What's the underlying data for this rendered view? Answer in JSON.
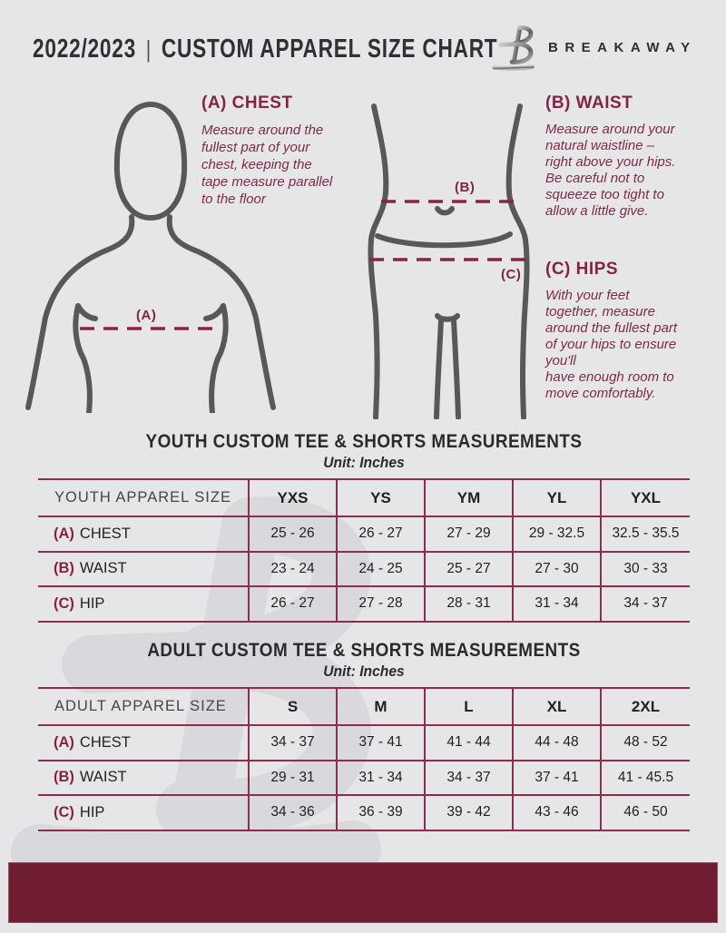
{
  "header": {
    "year": "2022/2023",
    "divider": "|",
    "title": "CUSTOM APPAREL SIZE CHART",
    "brand": "BREAKAWAY"
  },
  "instructions": [
    {
      "heading": "(A) CHEST",
      "body": "Measure around the\nfullest part of your\nchest, keeping the\ntape measure parallel\nto the floor"
    },
    {
      "heading": "(B) WAIST",
      "body": "Measure around your\nnatural waistline –\nright above your hips.\nBe careful not to\nsqueeze too tight to\nallow a little give."
    },
    {
      "heading": "(C) HIPS",
      "body": "With your feet\ntogether, measure\naround the fullest part\nof your hips to ensure\nyou'll\nhave enough room to\nmove comfortably."
    }
  ],
  "diagram_labels": {
    "chest": "(A)",
    "waist": "(B)",
    "hips": "(C)"
  },
  "tables": [
    {
      "title": "YOUTH CUSTOM TEE & SHORTS MEASUREMENTS",
      "subtitle": "Unit: Inches",
      "size_header": "YOUTH APPAREL SIZE",
      "sizes": [
        "YXS",
        "YS",
        "YM",
        "YL",
        "YXL"
      ],
      "rows": [
        {
          "key": "(A)",
          "label": "CHEST",
          "values": [
            "25 - 26",
            "26 - 27",
            "27 - 29",
            "29 - 32.5",
            "32.5 - 35.5"
          ]
        },
        {
          "key": "(B)",
          "label": "WAIST",
          "values": [
            "23 - 24",
            "24 - 25",
            "25 - 27",
            "27 - 30",
            "30 - 33"
          ]
        },
        {
          "key": "(C)",
          "label": "HIP",
          "values": [
            "26 - 27",
            "27 - 28",
            "28 - 31",
            "31 - 34",
            "34 - 37"
          ]
        }
      ]
    },
    {
      "title": "ADULT CUSTOM TEE & SHORTS MEASUREMENTS",
      "subtitle": "Unit: Inches",
      "size_header": "ADULT APPAREL SIZE",
      "sizes": [
        "S",
        "M",
        "L",
        "XL",
        "2XL"
      ],
      "rows": [
        {
          "key": "(A)",
          "label": "CHEST",
          "values": [
            "34 - 37",
            "37 - 41",
            "41 - 44",
            "44 - 48",
            "48 - 52"
          ]
        },
        {
          "key": "(B)",
          "label": "WAIST",
          "values": [
            "29 - 31",
            "31 - 34",
            "34 - 37",
            "37 - 41",
            "41 - 45.5"
          ]
        },
        {
          "key": "(C)",
          "label": "HIP",
          "values": [
            "34 - 36",
            "36 - 39",
            "39 - 42",
            "43 - 46",
            "46 - 50"
          ]
        }
      ]
    }
  ],
  "colors": {
    "background": "#e6e6e8",
    "maroon_heading": "#832440",
    "maroon_body_text": "#7d2b47",
    "table_line": "#8c2e4b",
    "footer_bar": "#701d31",
    "silhouette": "#58585b"
  }
}
